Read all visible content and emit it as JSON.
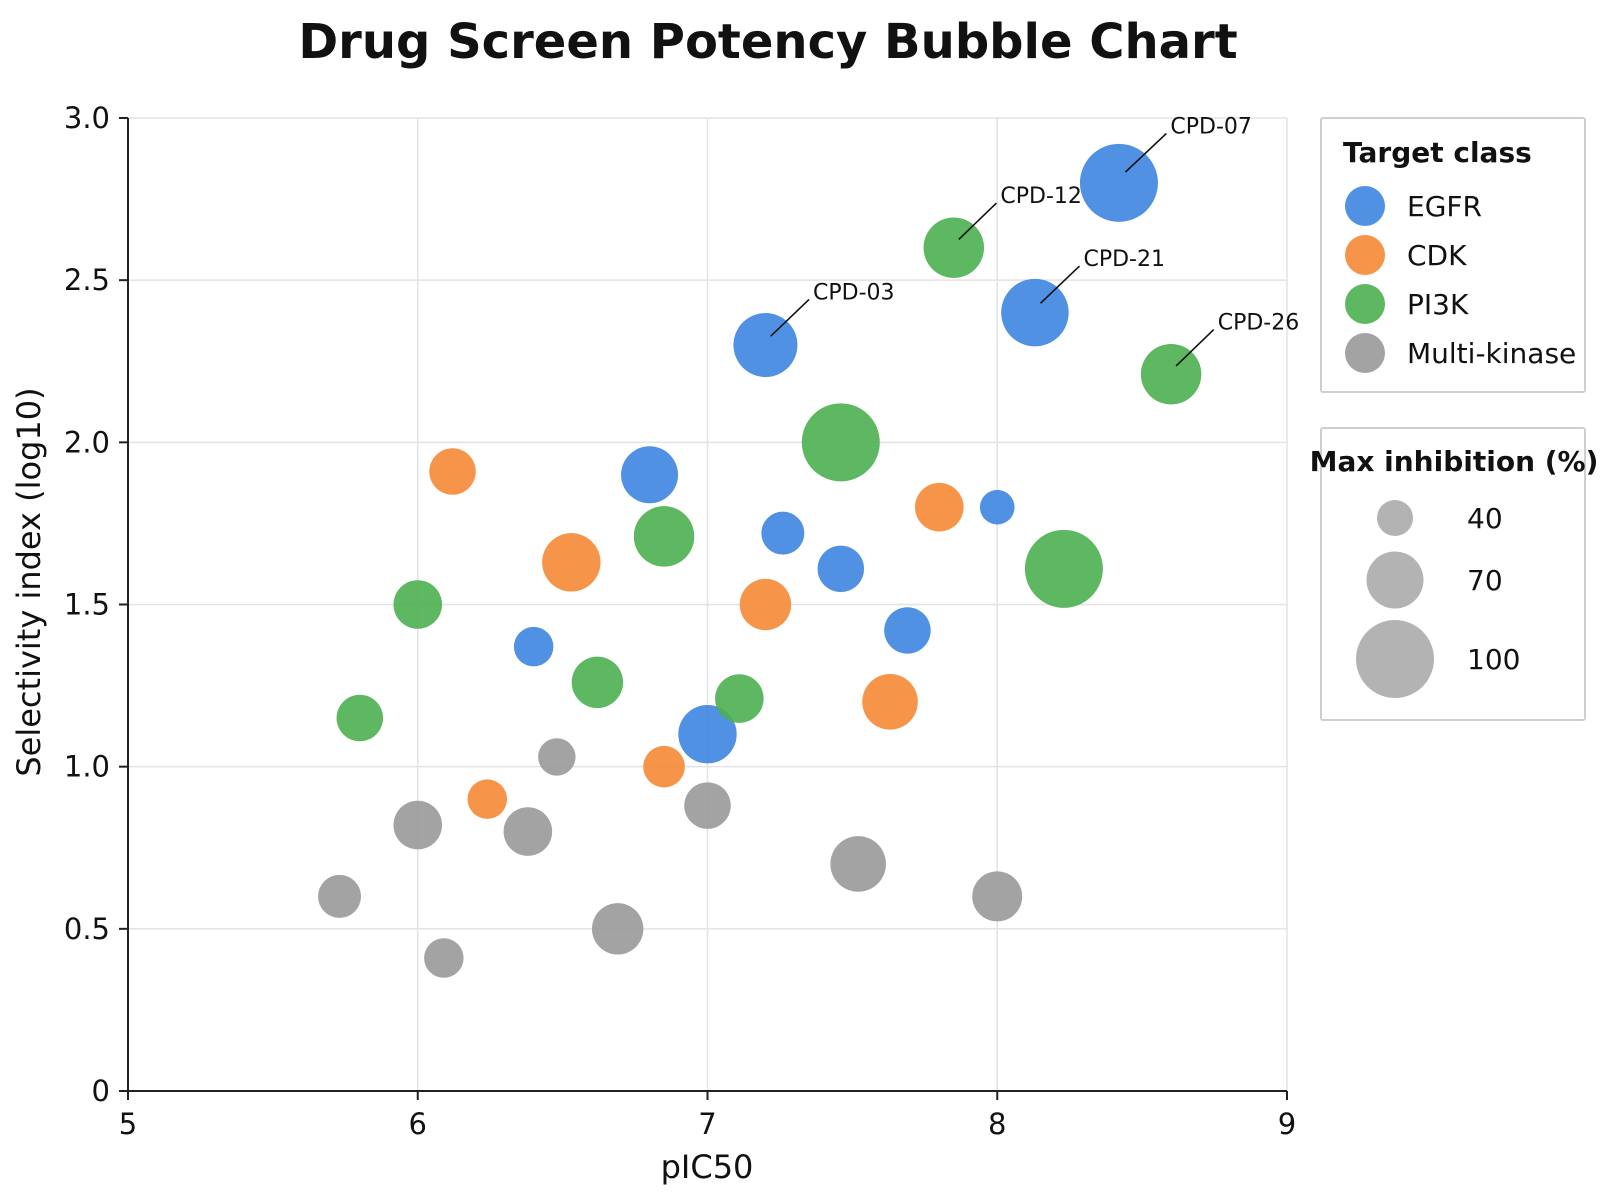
{
  "chart_data": {
    "type": "scatter",
    "title": "Drug Screen Potency Bubble Chart",
    "xlabel": "pIC50",
    "ylabel": "Selectivity index (log10)",
    "xlim": [
      5,
      9
    ],
    "ylim": [
      0,
      3.0
    ],
    "xticks": [
      5,
      6,
      7,
      8,
      9
    ],
    "yticks": [
      0,
      0.5,
      1.0,
      1.5,
      2.0,
      2.5,
      3.0
    ],
    "ytick_labels": [
      "0",
      "0.5",
      "1.0",
      "1.5",
      "2.0",
      "2.5",
      "3.0"
    ],
    "grid": true,
    "legend_placement": "right",
    "size_variable": "Max inhibition (%)",
    "series": [
      {
        "name": "EGFR",
        "color": "#3d85e0",
        "points": [
          {
            "x": 8.42,
            "y": 2.8,
            "size": 100,
            "label": "CPD-07"
          },
          {
            "x": 8.13,
            "y": 2.4,
            "size": 85,
            "label": "CPD-21"
          },
          {
            "x": 7.2,
            "y": 2.3,
            "size": 80,
            "label": "CPD-03"
          },
          {
            "x": 6.8,
            "y": 1.9,
            "size": 70
          },
          {
            "x": 7.26,
            "y": 1.72,
            "size": 50
          },
          {
            "x": 7.46,
            "y": 1.61,
            "size": 55
          },
          {
            "x": 8.0,
            "y": 1.8,
            "size": 38
          },
          {
            "x": 6.4,
            "y": 1.37,
            "size": 45
          },
          {
            "x": 7.69,
            "y": 1.42,
            "size": 55
          },
          {
            "x": 7.0,
            "y": 1.1,
            "size": 72
          }
        ]
      },
      {
        "name": "CDK",
        "color": "#f58a35",
        "points": [
          {
            "x": 6.12,
            "y": 1.91,
            "size": 55
          },
          {
            "x": 6.53,
            "y": 1.63,
            "size": 72
          },
          {
            "x": 7.8,
            "y": 1.8,
            "size": 58
          },
          {
            "x": 7.2,
            "y": 1.5,
            "size": 62
          },
          {
            "x": 7.63,
            "y": 1.2,
            "size": 68
          },
          {
            "x": 6.24,
            "y": 0.9,
            "size": 45
          },
          {
            "x": 6.85,
            "y": 1.0,
            "size": 48
          }
        ]
      },
      {
        "name": "PI3K",
        "color": "#4caf50",
        "points": [
          {
            "x": 7.85,
            "y": 2.6,
            "size": 75,
            "label": "CPD-12"
          },
          {
            "x": 8.6,
            "y": 2.21,
            "size": 75,
            "label": "CPD-26"
          },
          {
            "x": 7.46,
            "y": 2.0,
            "size": 100
          },
          {
            "x": 6.85,
            "y": 1.71,
            "size": 75
          },
          {
            "x": 8.23,
            "y": 1.61,
            "size": 100
          },
          {
            "x": 6.0,
            "y": 1.5,
            "size": 58
          },
          {
            "x": 6.62,
            "y": 1.26,
            "size": 62
          },
          {
            "x": 7.11,
            "y": 1.21,
            "size": 58
          },
          {
            "x": 5.8,
            "y": 1.15,
            "size": 55
          }
        ]
      },
      {
        "name": "Multi-kinase",
        "color": "#999999",
        "points": [
          {
            "x": 6.48,
            "y": 1.03,
            "size": 42
          },
          {
            "x": 7.0,
            "y": 0.88,
            "size": 55
          },
          {
            "x": 6.0,
            "y": 0.82,
            "size": 58
          },
          {
            "x": 6.38,
            "y": 0.8,
            "size": 58
          },
          {
            "x": 5.73,
            "y": 0.6,
            "size": 50
          },
          {
            "x": 7.52,
            "y": 0.7,
            "size": 68
          },
          {
            "x": 8.0,
            "y": 0.6,
            "size": 60
          },
          {
            "x": 6.69,
            "y": 0.5,
            "size": 62
          },
          {
            "x": 6.09,
            "y": 0.41,
            "size": 45
          }
        ]
      }
    ],
    "legend_color": {
      "title": "Target class",
      "entries": [
        "EGFR",
        "CDK",
        "PI3K",
        "Multi-kinase"
      ]
    },
    "legend_size": {
      "title": "Max inhibition (%)",
      "entries": [
        {
          "label": "40",
          "size": 40
        },
        {
          "label": "70",
          "size": 70
        },
        {
          "label": "100",
          "size": 100
        }
      ]
    }
  }
}
